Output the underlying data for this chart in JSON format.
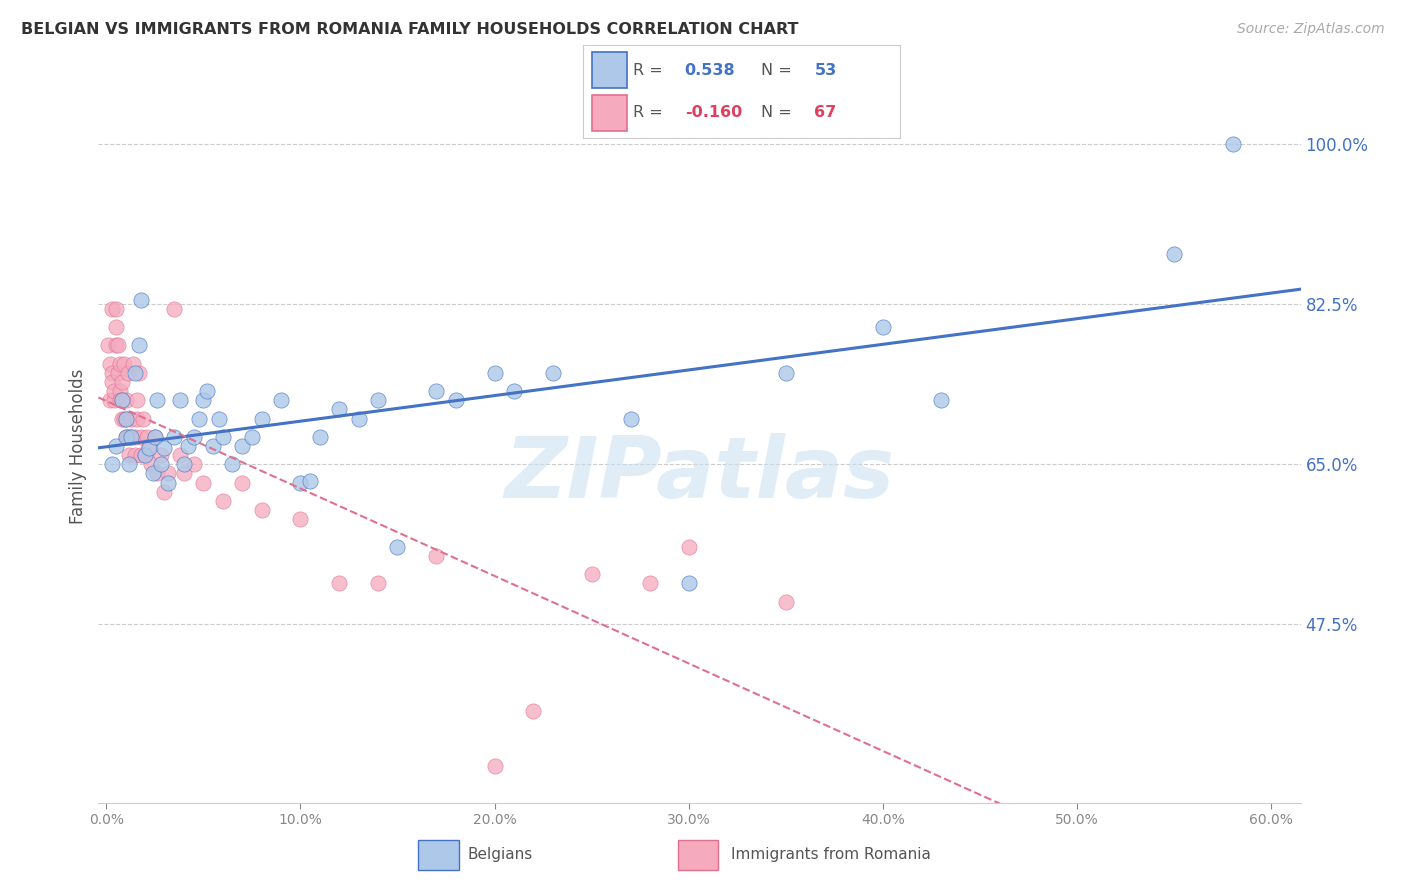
{
  "title": "BELGIAN VS IMMIGRANTS FROM ROMANIA FAMILY HOUSEHOLDS CORRELATION CHART",
  "source": "Source: ZipAtlas.com",
  "ylabel": "Family Households",
  "ytick_labels": [
    "100.0%",
    "82.5%",
    "65.0%",
    "47.5%"
  ],
  "ytick_values": [
    1.0,
    0.825,
    0.65,
    0.475
  ],
  "ymin": 0.28,
  "ymax": 1.06,
  "xmin": -0.004,
  "xmax": 0.615,
  "belgian_face_color": "#adc8e8",
  "belgian_edge_color": "#4472c4",
  "romanian_face_color": "#f5aabe",
  "romanian_edge_color": "#e07090",
  "trendline_belgian_color": "#4472c4",
  "trendline_romanian_color": "#e07090",
  "watermark_text": "ZIPatlas",
  "watermark_color": "#c8dff0",
  "grid_color": "#cccccc",
  "ytick_color": "#4472c4",
  "title_color": "#333333",
  "source_color": "#aaaaaa",
  "ylabel_color": "#555555",
  "bottom_label_belgian": "Belgians",
  "bottom_label_romanian": "Immigrants from Romania",
  "belgians_x": [
    0.003,
    0.005,
    0.008,
    0.01,
    0.01,
    0.012,
    0.013,
    0.015,
    0.017,
    0.018,
    0.02,
    0.022,
    0.024,
    0.025,
    0.026,
    0.028,
    0.03,
    0.032,
    0.035,
    0.038,
    0.04,
    0.042,
    0.045,
    0.048,
    0.05,
    0.052,
    0.055,
    0.058,
    0.06,
    0.065,
    0.07,
    0.075,
    0.08,
    0.09,
    0.1,
    0.105,
    0.11,
    0.12,
    0.13,
    0.14,
    0.15,
    0.17,
    0.18,
    0.2,
    0.21,
    0.23,
    0.27,
    0.3,
    0.35,
    0.4,
    0.43,
    0.55,
    0.58
  ],
  "belgians_y": [
    0.65,
    0.67,
    0.72,
    0.68,
    0.7,
    0.65,
    0.68,
    0.75,
    0.78,
    0.83,
    0.66,
    0.668,
    0.64,
    0.68,
    0.72,
    0.65,
    0.668,
    0.63,
    0.68,
    0.72,
    0.65,
    0.67,
    0.68,
    0.7,
    0.72,
    0.73,
    0.67,
    0.7,
    0.68,
    0.65,
    0.67,
    0.68,
    0.7,
    0.72,
    0.63,
    0.632,
    0.68,
    0.71,
    0.7,
    0.72,
    0.56,
    0.73,
    0.72,
    0.75,
    0.73,
    0.75,
    0.7,
    0.52,
    0.75,
    0.8,
    0.72,
    0.88,
    1.0
  ],
  "romanians_x": [
    0.001,
    0.002,
    0.002,
    0.003,
    0.003,
    0.003,
    0.004,
    0.004,
    0.005,
    0.005,
    0.005,
    0.006,
    0.006,
    0.007,
    0.007,
    0.007,
    0.008,
    0.008,
    0.008,
    0.009,
    0.009,
    0.01,
    0.01,
    0.01,
    0.011,
    0.011,
    0.012,
    0.012,
    0.013,
    0.013,
    0.014,
    0.015,
    0.015,
    0.016,
    0.016,
    0.017,
    0.018,
    0.018,
    0.019,
    0.02,
    0.021,
    0.022,
    0.023,
    0.025,
    0.026,
    0.028,
    0.03,
    0.032,
    0.035,
    0.038,
    0.04,
    0.045,
    0.05,
    0.06,
    0.07,
    0.08,
    0.1,
    0.12,
    0.14,
    0.17,
    0.2,
    0.22,
    0.25,
    0.28,
    0.3,
    0.35
  ],
  "romanians_y": [
    0.78,
    0.76,
    0.72,
    0.75,
    0.74,
    0.82,
    0.72,
    0.73,
    0.78,
    0.8,
    0.82,
    0.75,
    0.78,
    0.73,
    0.72,
    0.76,
    0.7,
    0.72,
    0.74,
    0.76,
    0.7,
    0.68,
    0.7,
    0.72,
    0.75,
    0.68,
    0.66,
    0.68,
    0.7,
    0.68,
    0.76,
    0.66,
    0.68,
    0.7,
    0.72,
    0.75,
    0.66,
    0.68,
    0.7,
    0.66,
    0.68,
    0.67,
    0.65,
    0.68,
    0.64,
    0.66,
    0.62,
    0.64,
    0.82,
    0.66,
    0.64,
    0.65,
    0.63,
    0.61,
    0.63,
    0.6,
    0.59,
    0.52,
    0.52,
    0.55,
    0.32,
    0.38,
    0.53,
    0.52,
    0.56,
    0.5
  ],
  "xtick_positions": [
    0.0,
    0.1,
    0.2,
    0.3,
    0.4,
    0.5,
    0.6
  ],
  "xtick_labels": [
    "0.0%",
    "10.0%",
    "20.0%",
    "30.0%",
    "40.0%",
    "50.0%",
    "60.0%"
  ]
}
